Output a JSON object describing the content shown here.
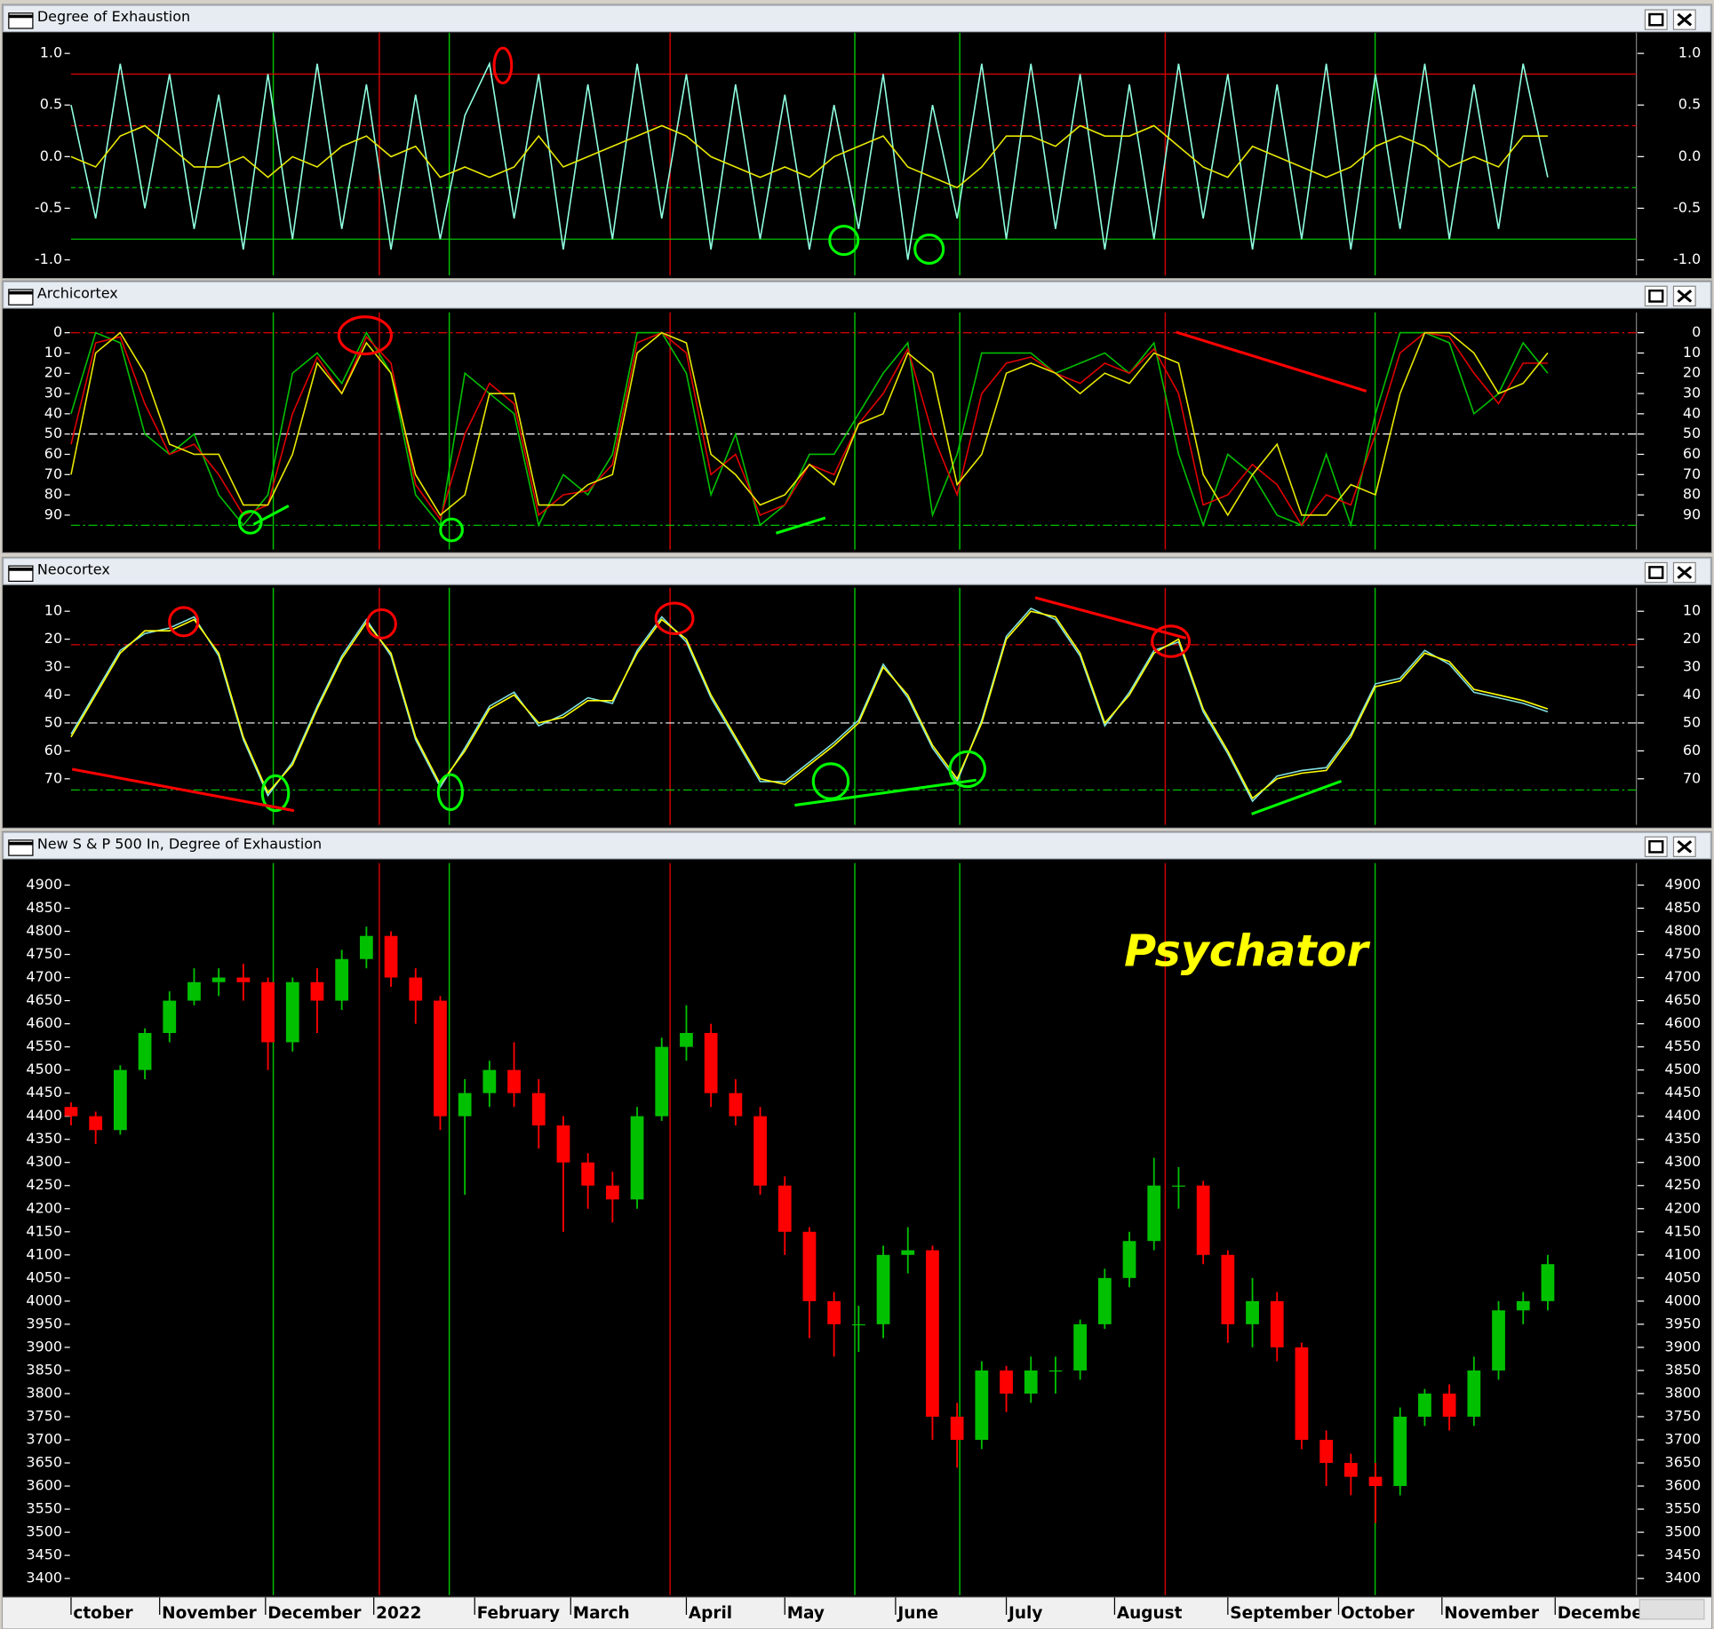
{
  "chart_data": [
    {
      "type": "line",
      "title": "Degree of Exhaustion",
      "xlim": [
        0,
        63.6
      ],
      "ylim": [
        -1.15,
        1.2
      ],
      "inverted": false,
      "yticks": [
        {
          "value": 1,
          "label": "1.0"
        },
        0.5,
        {
          "value": 0,
          "label": "0.0"
        },
        -0.5,
        {
          "value": -1,
          "label": "-1.0"
        }
      ],
      "reference_lines": [
        {
          "value": 0.8,
          "color": "#e00000",
          "style": "solid"
        },
        {
          "value": 0.3,
          "color": "#e00000",
          "style": "dashed"
        },
        {
          "value": -0.3,
          "color": "#00c000",
          "style": "dashed"
        },
        {
          "value": -0.8,
          "color": "#00c000",
          "style": "solid"
        }
      ],
      "x": [
        0,
        1,
        2,
        3,
        4,
        5,
        6,
        7,
        8,
        9,
        10,
        11,
        12,
        13,
        14,
        15,
        16,
        17,
        18,
        19,
        20,
        21,
        22,
        23,
        24,
        25,
        26,
        27,
        28,
        29,
        30,
        31,
        32,
        33,
        34,
        35,
        36,
        37,
        38,
        39,
        40,
        41,
        42,
        43,
        44,
        45,
        46,
        47,
        48,
        49,
        50,
        51,
        52,
        53,
        54,
        55,
        56,
        57,
        58,
        59,
        60
      ],
      "series": [
        {
          "color": "#8fffe0",
          "values": [
            0.5,
            -0.6,
            0.9,
            -0.5,
            0.8,
            -0.7,
            0.6,
            -0.9,
            0.8,
            -0.8,
            0.9,
            -0.7,
            0.7,
            -0.9,
            0.6,
            -0.8,
            0.4,
            0.9,
            -0.6,
            0.8,
            -0.9,
            0.7,
            -0.8,
            0.9,
            -0.6,
            0.8,
            -0.9,
            0.7,
            -0.8,
            0.6,
            -0.9,
            0.5,
            -0.7,
            0.8,
            -1.0,
            0.5,
            -0.6,
            0.9,
            -0.8,
            0.9,
            -0.7,
            0.8,
            -0.9,
            0.7,
            -0.8,
            0.9,
            -0.6,
            0.8,
            -0.9,
            0.7,
            -0.8,
            0.9,
            -0.9,
            0.8,
            -0.7,
            0.9,
            -0.8,
            0.7,
            -0.7,
            0.9,
            -0.2
          ]
        },
        {
          "color": "#e8e800",
          "values": [
            0.0,
            -0.1,
            0.2,
            0.3,
            0.1,
            -0.1,
            -0.1,
            0.0,
            -0.2,
            0.0,
            -0.1,
            0.1,
            0.2,
            0.0,
            0.1,
            -0.2,
            -0.1,
            -0.2,
            -0.1,
            0.2,
            -0.1,
            0.0,
            0.1,
            0.2,
            0.3,
            0.2,
            0.0,
            -0.1,
            -0.2,
            -0.1,
            -0.2,
            0.0,
            0.1,
            0.2,
            -0.1,
            -0.2,
            -0.3,
            -0.1,
            0.2,
            0.2,
            0.1,
            0.3,
            0.2,
            0.2,
            0.3,
            0.1,
            -0.1,
            -0.2,
            0.1,
            0.0,
            -0.1,
            -0.2,
            -0.1,
            0.1,
            0.2,
            0.1,
            -0.1,
            0.0,
            -0.1,
            0.2,
            0.2
          ]
        }
      ]
    },
    {
      "type": "line",
      "title": "Archicortex",
      "xlim": [
        0,
        63.6
      ],
      "ylim": [
        -10,
        107
      ],
      "inverted": true,
      "yticks": [
        0,
        10,
        20,
        30,
        40,
        50,
        60,
        70,
        80,
        90
      ],
      "reference_lines": [
        {
          "value": 0,
          "color": "#e00000",
          "style": "dashdot"
        },
        {
          "value": 50,
          "color": "#ffffff",
          "style": "dashdot"
        },
        {
          "value": 95,
          "color": "#00c000",
          "style": "dashdot"
        }
      ],
      "x": [
        0,
        1,
        2,
        3,
        4,
        5,
        6,
        7,
        8,
        9,
        10,
        11,
        12,
        13,
        14,
        15,
        16,
        17,
        18,
        19,
        20,
        21,
        22,
        23,
        24,
        25,
        26,
        27,
        28,
        29,
        30,
        31,
        32,
        33,
        34,
        35,
        36,
        37,
        38,
        39,
        40,
        41,
        42,
        43,
        44,
        45,
        46,
        47,
        48,
        49,
        50,
        51,
        52,
        53,
        54,
        55,
        56,
        57,
        58,
        59,
        60
      ],
      "series": [
        {
          "color": "#00c000",
          "values": [
            40,
            0,
            5,
            50,
            60,
            50,
            80,
            95,
            80,
            20,
            10,
            25,
            0,
            20,
            80,
            95,
            20,
            30,
            40,
            95,
            70,
            80,
            60,
            0,
            0,
            20,
            80,
            50,
            95,
            85,
            60,
            60,
            40,
            20,
            5,
            90,
            60,
            10,
            10,
            10,
            20,
            15,
            10,
            20,
            5,
            60,
            95,
            60,
            70,
            90,
            95,
            60,
            95,
            40,
            0,
            0,
            5,
            40,
            30,
            5,
            20
          ]
        },
        {
          "color": "#e00000",
          "values": [
            55,
            5,
            2,
            35,
            60,
            55,
            70,
            90,
            85,
            40,
            12,
            30,
            2,
            15,
            75,
            92,
            50,
            25,
            35,
            90,
            80,
            78,
            65,
            5,
            0,
            10,
            70,
            60,
            90,
            85,
            65,
            70,
            45,
            30,
            8,
            50,
            80,
            30,
            15,
            12,
            20,
            25,
            15,
            20,
            8,
            30,
            85,
            80,
            65,
            75,
            95,
            80,
            85,
            50,
            10,
            0,
            2,
            20,
            35,
            15,
            15
          ]
        },
        {
          "color": "#e8e800",
          "values": [
            70,
            10,
            0,
            20,
            55,
            60,
            60,
            85,
            85,
            60,
            15,
            30,
            5,
            20,
            70,
            90,
            80,
            30,
            30,
            85,
            85,
            75,
            70,
            10,
            0,
            5,
            60,
            70,
            85,
            80,
            65,
            75,
            45,
            40,
            10,
            20,
            75,
            60,
            20,
            15,
            20,
            30,
            20,
            25,
            10,
            15,
            70,
            90,
            70,
            55,
            90,
            90,
            75,
            80,
            30,
            0,
            0,
            10,
            30,
            25,
            10
          ]
        }
      ]
    },
    {
      "type": "line",
      "title": "Neocortex",
      "xlim": [
        0,
        63.6
      ],
      "ylim": [
        1.6,
        86.5
      ],
      "inverted": true,
      "yticks": [
        10,
        20,
        30,
        40,
        50,
        60,
        70
      ],
      "reference_lines": [
        {
          "value": 22,
          "color": "#e00000",
          "style": "dashdot"
        },
        {
          "value": 50,
          "color": "#ffffff",
          "style": "dashdot"
        },
        {
          "value": 74,
          "color": "#00c000",
          "style": "dashdot"
        }
      ],
      "x": [
        0,
        1,
        2,
        3,
        4,
        5,
        6,
        7,
        8,
        9,
        10,
        11,
        12,
        13,
        14,
        15,
        16,
        17,
        18,
        19,
        20,
        21,
        22,
        23,
        24,
        25,
        26,
        27,
        28,
        29,
        30,
        31,
        32,
        33,
        34,
        35,
        36,
        37,
        38,
        39,
        40,
        41,
        42,
        43,
        44,
        45,
        46,
        47,
        48,
        49,
        50,
        51,
        52,
        53,
        54,
        55,
        56,
        57,
        58,
        59,
        60
      ],
      "series": [
        {
          "color": "#80e0e0",
          "values": [
            54,
            39,
            24,
            18,
            16,
            12,
            26,
            56,
            76,
            64,
            44,
            26,
            13,
            26,
            56,
            73,
            59,
            44,
            39,
            51,
            47,
            41,
            43,
            24,
            12,
            21,
            41,
            56,
            71,
            71,
            64,
            57,
            49,
            29,
            41,
            59,
            71,
            49,
            19,
            9,
            13,
            26,
            51,
            39,
            24,
            21,
            46,
            61,
            78,
            69,
            67,
            66,
            54,
            36,
            34,
            24,
            29,
            39,
            41,
            43,
            46
          ]
        },
        {
          "color": "#ffff00",
          "values": [
            55,
            40,
            25,
            17,
            17,
            13,
            25,
            55,
            75,
            65,
            45,
            27,
            14,
            25,
            55,
            72,
            60,
            45,
            40,
            50,
            48,
            42,
            42,
            25,
            13,
            20,
            40,
            55,
            70,
            72,
            65,
            58,
            50,
            30,
            40,
            58,
            70,
            50,
            20,
            10,
            12,
            25,
            50,
            40,
            25,
            20,
            45,
            60,
            77,
            70,
            68,
            67,
            55,
            37,
            35,
            25,
            28,
            38,
            40,
            42,
            45
          ]
        }
      ]
    },
    {
      "type": "candlestick",
      "title": "New S & P 500 In, Degree of Exhaustion",
      "annotation": "Psychator",
      "xlim": [
        0,
        63.6
      ],
      "ylim": [
        3364,
        4947.5
      ],
      "inverted": false,
      "up_color": "#00c000",
      "down_color": "#ff0000",
      "yticks": [
        3400,
        3450,
        3500,
        3550,
        3600,
        3650,
        3700,
        3750,
        3800,
        3850,
        3900,
        3950,
        4000,
        4050,
        4100,
        4150,
        4200,
        4250,
        4300,
        4350,
        4400,
        4450,
        4500,
        4550,
        4600,
        4650,
        4700,
        4750,
        4800,
        4850,
        4900
      ],
      "xticks": [
        {
          "value": 0,
          "label": "ctober"
        },
        {
          "value": 3.6,
          "label": "November"
        },
        {
          "value": 7.9,
          "label": "December"
        },
        {
          "value": 12.3,
          "label": "2022"
        },
        {
          "value": 16.4,
          "label": "February"
        },
        {
          "value": 20.3,
          "label": "March"
        },
        {
          "value": 25.0,
          "label": "April"
        },
        {
          "value": 29.0,
          "label": "May"
        },
        {
          "value": 33.5,
          "label": "June"
        },
        {
          "value": 38.0,
          "label": "July"
        },
        {
          "value": 42.4,
          "label": "August"
        },
        {
          "value": 47.0,
          "label": "September"
        },
        {
          "value": 51.5,
          "label": "October"
        },
        {
          "value": 55.7,
          "label": "November"
        },
        {
          "value": 60.3,
          "label": "Decembe"
        }
      ],
      "x": [
        0,
        1,
        2,
        3,
        4,
        5,
        6,
        7,
        8,
        9,
        10,
        11,
        12,
        13,
        14,
        15,
        16,
        17,
        18,
        19,
        20,
        21,
        22,
        23,
        24,
        25,
        26,
        27,
        28,
        29,
        30,
        31,
        32,
        33,
        34,
        35,
        36,
        37,
        38,
        39,
        40,
        41,
        42,
        43,
        44,
        45,
        46,
        47,
        48,
        49,
        50,
        51,
        52,
        53,
        54,
        55,
        56,
        57,
        58,
        59,
        60
      ],
      "open": [
        4420,
        4400,
        4370,
        4500,
        4580,
        4650,
        4690,
        4700,
        4690,
        4560,
        4690,
        4650,
        4740,
        4790,
        4700,
        4650,
        4400,
        4450,
        4500,
        4450,
        4380,
        4300,
        4250,
        4220,
        4400,
        4550,
        4580,
        4450,
        4400,
        4250,
        4150,
        4000,
        3950,
        3950,
        4100,
        4110,
        3750,
        3700,
        3850,
        3800,
        3850,
        3850,
        3950,
        4050,
        4130,
        4250,
        4250,
        4100,
        3950,
        4000,
        3900,
        3700,
        3650,
        3620,
        3600,
        3750,
        3800,
        3750,
        3850,
        3980,
        4000
      ],
      "high": [
        4430,
        4410,
        4510,
        4590,
        4670,
        4720,
        4720,
        4730,
        4700,
        4700,
        4720,
        4760,
        4810,
        4800,
        4720,
        4660,
        4480,
        4520,
        4560,
        4480,
        4400,
        4320,
        4280,
        4420,
        4570,
        4640,
        4600,
        4480,
        4420,
        4270,
        4160,
        4020,
        3990,
        4120,
        4160,
        4120,
        3780,
        3870,
        3860,
        3880,
        3880,
        3960,
        4070,
        4150,
        4310,
        4290,
        4260,
        4110,
        4050,
        4020,
        3910,
        3720,
        3670,
        3650,
        3770,
        3810,
        3820,
        3880,
        4000,
        4020,
        4100
      ],
      "low": [
        4380,
        4340,
        4360,
        4480,
        4560,
        4640,
        4660,
        4650,
        4500,
        4540,
        4580,
        4630,
        4720,
        4680,
        4600,
        4370,
        4230,
        4420,
        4420,
        4330,
        4150,
        4200,
        4170,
        4200,
        4390,
        4520,
        4420,
        4380,
        4230,
        4100,
        3920,
        3880,
        3890,
        3920,
        4060,
        3700,
        3640,
        3680,
        3760,
        3780,
        3800,
        3830,
        3940,
        4030,
        4110,
        4200,
        4080,
        3910,
        3900,
        3870,
        3680,
        3600,
        3580,
        3520,
        3580,
        3730,
        3720,
        3730,
        3830,
        3950,
        3980
      ],
      "close": [
        4400,
        4370,
        4500,
        4580,
        4650,
        4690,
        4700,
        4690,
        4560,
        4690,
        4650,
        4740,
        4790,
        4700,
        4650,
        4400,
        4450,
        4500,
        4450,
        4380,
        4300,
        4250,
        4220,
        4400,
        4550,
        4580,
        4450,
        4400,
        4250,
        4150,
        4000,
        3950,
        3950,
        4100,
        4110,
        3750,
        3700,
        3850,
        3800,
        3850,
        3850,
        3950,
        4050,
        4130,
        4250,
        4250,
        4100,
        3950,
        4000,
        3900,
        3700,
        3650,
        3620,
        3600,
        3750,
        3800,
        3750,
        3850,
        3980,
        4000,
        4080
      ]
    }
  ]
}
